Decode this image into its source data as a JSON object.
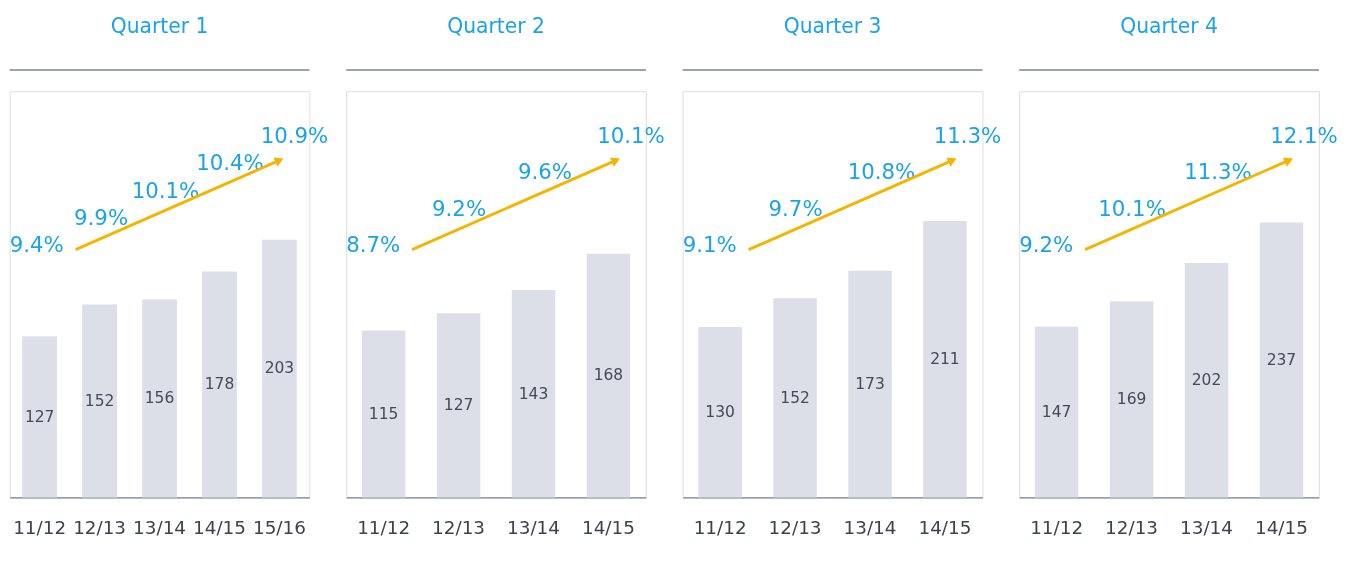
{
  "chart_data": [
    {
      "type": "bar",
      "title": "Quarter 1",
      "categories": [
        "11/12",
        "12/13",
        "13/14",
        "14/15",
        "15/16"
      ],
      "ylim": [
        0,
        320
      ],
      "tick_labels": "x",
      "data_labels": true,
      "series": [
        {
          "color": "#dcdfe8",
          "values": [
            127,
            152,
            156,
            178,
            203
          ]
        }
      ],
      "annotations": [
        "9.4%",
        "9.9%",
        "10.1%",
        "10.4%",
        "10.9%"
      ]
    },
    {
      "type": "bar",
      "title": "Quarter 2",
      "categories": [
        "11/12",
        "12/13",
        "13/14",
        "14/15"
      ],
      "ylim": [
        0,
        280
      ],
      "tick_labels": "x",
      "data_labels": true,
      "series": [
        {
          "color": "#dcdfe8",
          "values": [
            115,
            127,
            143,
            168
          ]
        }
      ],
      "annotations": [
        "8.7%",
        "9.2%",
        "9.6%",
        "10.1%"
      ]
    },
    {
      "type": "bar",
      "title": "Quarter 3",
      "categories": [
        "11/12",
        "12/13",
        "13/14",
        "14/15"
      ],
      "ylim": [
        0,
        310
      ],
      "tick_labels": "x",
      "data_labels": true,
      "series": [
        {
          "color": "#dcdfe8",
          "values": [
            130,
            152,
            173,
            211
          ]
        }
      ],
      "annotations": [
        "9.1%",
        "9.7%",
        "10.8%",
        "11.3%"
      ]
    },
    {
      "type": "bar",
      "title": "Quarter 4",
      "categories": [
        "11/12",
        "12/13",
        "13/14",
        "14/15"
      ],
      "ylim": [
        0,
        350
      ],
      "tick_labels": "x",
      "data_labels": true,
      "series": [
        {
          "color": "#dcdfe8",
          "values": [
            147,
            169,
            202,
            237
          ]
        }
      ],
      "annotations": [
        "9.2%",
        "10.1%",
        "11.3%",
        "12.1%"
      ]
    }
  ]
}
